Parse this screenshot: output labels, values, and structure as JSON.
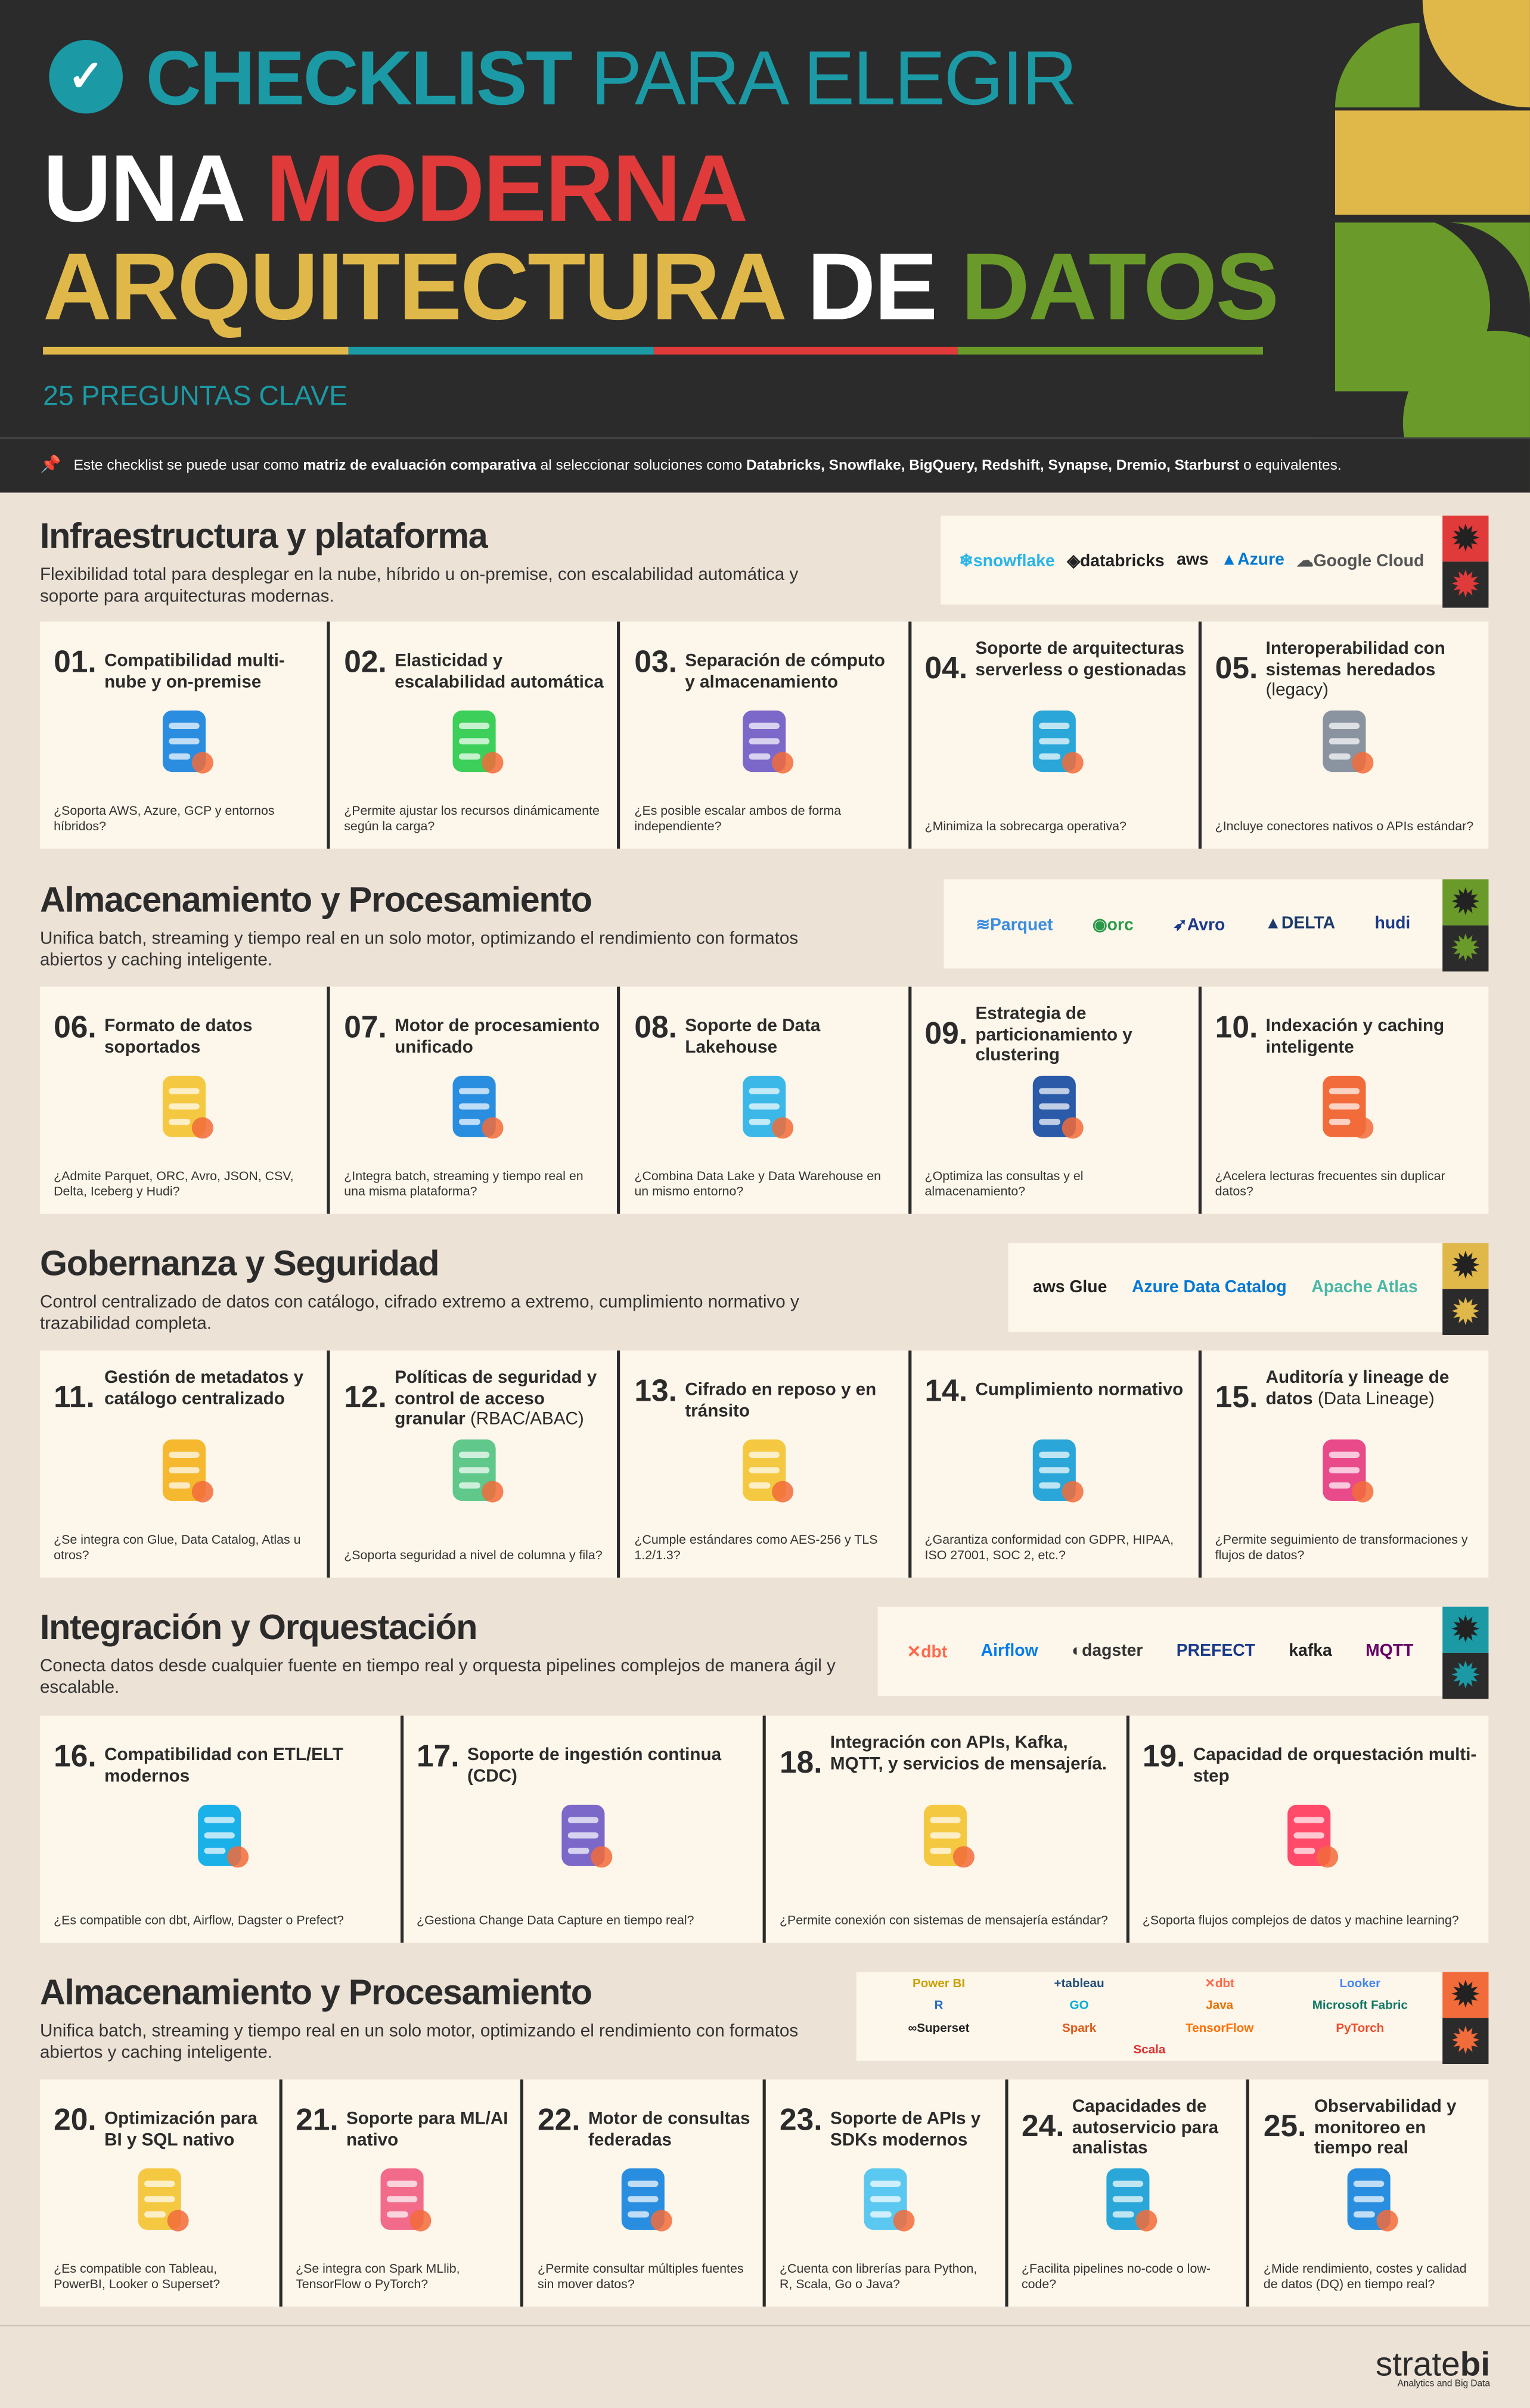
{
  "header": {
    "t1_bold": "CHECKLIST",
    "t1_thin": " PARA ELEGIR",
    "t2_a": "UNA ",
    "t2_b": "MODERNA",
    "t3_a": "ARQUITECTURA ",
    "t3_b": "DE ",
    "t3_c": "DATOS",
    "subtitle": "25 PREGUNTAS CLAVE",
    "colors": {
      "teal": "#1b9aa5",
      "red": "#e03a3a",
      "yellow": "#e0b84a",
      "green": "#6a9a2a",
      "dark": "#2b2b2b"
    }
  },
  "note": {
    "a": "Este checklist se puede usar como ",
    "b": "matriz de evaluación comparativa",
    "c": " al seleccionar soluciones como ",
    "d": "Databricks, Snowflake, BigQuery, Redshift, Synapse, Dremio, Starburst",
    "e": " o equivalentes."
  },
  "sections": [
    {
      "title": "Infraestructura y plataforma",
      "desc": "Flexibilidad total para desplegar en la nube, híbrido u on-premise, con escalabilidad automática y soporte para arquitecturas modernas.",
      "badge_color": "#e03a3a",
      "logos": [
        {
          "text": "❄snowflake",
          "color": "#29b5e8"
        },
        {
          "text": "◈databricks",
          "color": "#222"
        },
        {
          "text": "aws",
          "color": "#222"
        },
        {
          "text": "▲Azure",
          "color": "#0078d4"
        },
        {
          "text": "☁Google Cloud",
          "color": "#555"
        }
      ],
      "cards": [
        {
          "num": "01.",
          "title": "Compatibilidad multi-nube y on-premise",
          "extra": "",
          "q": "¿Soporta AWS, Azure, GCP y entornos híbridos?",
          "icon": "database-icon",
          "color": "#2b8de0"
        },
        {
          "num": "02.",
          "title": "Elasticidad y escalabilidad automática",
          "extra": "",
          "q": "¿Permite ajustar los recursos dinámicamente según la carga?",
          "icon": "resize-icon",
          "color": "#3ccf5a"
        },
        {
          "num": "03.",
          "title": "Separación de cómputo y almacenamiento",
          "extra": "",
          "q": "¿Es posible escalar ambos de forma independiente?",
          "icon": "server-stack-icon",
          "color": "#7b68c8"
        },
        {
          "num": "04.",
          "title": "Soporte de arquitecturas serverless o gestionadas",
          "extra": "",
          "q": "¿Minimiza la sobrecarga operativa?",
          "icon": "gear-flow-icon",
          "color": "#2aa7d8"
        },
        {
          "num": "05.",
          "title": "Interoperabilidad con sistemas heredados",
          "extra": "(legacy)",
          "q": "¿Incluye conectores nativos o APIs estándar?",
          "icon": "sync-gear-icon",
          "color": "#8a94a0"
        }
      ]
    },
    {
      "title": "Almacenamiento y Procesamiento",
      "desc": "Unifica batch, streaming y tiempo real en un solo motor, optimizando el rendimiento con formatos abiertos y caching inteligente.",
      "badge_color": "#6a9a2a",
      "logos": [
        {
          "text": "≋Parquet",
          "color": "#3a8de0"
        },
        {
          "text": "◉orc",
          "color": "#2a9a4a"
        },
        {
          "text": "➶Avro",
          "color": "#1a3a8a"
        },
        {
          "text": "▲DELTA",
          "color": "#1a3a6a"
        },
        {
          "text": "hudi",
          "color": "#1a3a8a"
        }
      ],
      "cards": [
        {
          "num": "06.",
          "title": "Formato de datos soportados",
          "extra": "",
          "q": "¿Admite Parquet, ORC, Avro, JSON, CSV, Delta, Iceberg y Hudi?",
          "icon": "documents-icon",
          "color": "#f5c842"
        },
        {
          "num": "07.",
          "title": "Motor de procesamiento unificado",
          "extra": "",
          "q": "¿Integra batch, streaming y tiempo real en una misma plataforma?",
          "icon": "gear-boxes-icon",
          "color": "#2a8ee0"
        },
        {
          "num": "08.",
          "title": "Soporte de Data Lakehouse",
          "extra": "",
          "q": "¿Combina Data Lake y Data Warehouse en un mismo entorno?",
          "icon": "lakehouse-icon",
          "color": "#3bb8e8"
        },
        {
          "num": "09.",
          "title": "Estrategia de particionamiento y clustering",
          "extra": "",
          "q": "¿Optimiza las consultas y el almacenamiento?",
          "icon": "cluster-chart-icon",
          "color": "#2a5aa8"
        },
        {
          "num": "10.",
          "title": "Indexación y caching inteligente",
          "extra": "",
          "q": "¿Acelera lecturas frecuentes sin duplicar datos?",
          "icon": "cache-icon",
          "color": "#f26b3a"
        }
      ]
    },
    {
      "title": "Gobernanza y Seguridad",
      "desc": "Control centralizado de datos con catálogo, cifrado extremo a extremo, cumplimiento normativo y trazabilidad completa.",
      "badge_color": "#e0b84a",
      "logos": [
        {
          "text": "aws Glue",
          "color": "#222"
        },
        {
          "text": "Azure Data Catalog",
          "color": "#0078d4"
        },
        {
          "text": "Apache Atlas",
          "color": "#4ab8a8"
        }
      ],
      "cards": [
        {
          "num": "11.",
          "title": "Gestión de metadatos y catálogo centralizado",
          "extra": "",
          "q": "¿Se integra con Glue, Data Catalog, Atlas u otros?",
          "icon": "catalog-book-icon",
          "color": "#f5b82e"
        },
        {
          "num": "12.",
          "title": "Políticas de seguridad y control de acceso granular",
          "extra": "(RBAC/ABAC)",
          "q": "¿Soporta seguridad a nivel de columna y fila?",
          "icon": "shield-icon",
          "color": "#5fc88a"
        },
        {
          "num": "13.",
          "title": "Cifrado en reposo y en tránsito",
          "extra": "",
          "q": "¿Cumple estándares como AES-256 y TLS 1.2/1.3?",
          "icon": "encrypted-folder-icon",
          "color": "#f5c842"
        },
        {
          "num": "14.",
          "title": "Cumplimiento normativo",
          "extra": "",
          "q": "¿Garantiza conformidad con GDPR, HIPAA, ISO 27001, SOC 2, etc.?",
          "icon": "compliance-icon",
          "color": "#2aa7d8"
        },
        {
          "num": "15.",
          "title": "Auditoría y lineage de datos",
          "extra": "(Data Lineage)",
          "q": "¿Permite seguimiento de transformaciones y flujos de datos?",
          "icon": "audit-icon",
          "color": "#e84a8a"
        }
      ]
    },
    {
      "title": "Integración y Orquestación",
      "desc": "Conecta datos desde cualquier fuente en tiempo real y orquesta pipelines complejos de manera ágil y escalable.",
      "badge_color": "#1b9aa5",
      "logos": [
        {
          "text": "✕dbt",
          "color": "#ff694b"
        },
        {
          "text": "Airflow",
          "color": "#017cee"
        },
        {
          "text": "◐dagster",
          "color": "#333"
        },
        {
          "text": "PREFECT",
          "color": "#1a3a8a"
        },
        {
          "text": "kafka",
          "color": "#222"
        },
        {
          "text": "MQTT",
          "color": "#660066"
        }
      ],
      "cards": [
        {
          "num": "16.",
          "title": "Compatibilidad con ETL/ELT modernos",
          "extra": "",
          "q": "¿Es compatible con dbt, Airflow, Dagster o Prefect?",
          "icon": "etl-icon",
          "color": "#1ab0e8"
        },
        {
          "num": "17.",
          "title": "Soporte de ingestión continua (CDC)",
          "extra": "",
          "q": "¿Gestiona Change Data Capture en tiempo real?",
          "icon": "server-timer-icon",
          "color": "#7b68c8"
        },
        {
          "num": "18.",
          "title": "Integración con APIs, Kafka, MQTT, y servicios de mensajería.",
          "extra": "",
          "q": "¿Permite conexión con sistemas de mensajería estándar?",
          "icon": "api-icon",
          "color": "#f5c842"
        },
        {
          "num": "19.",
          "title": "Capacidad de orquestación multi-step",
          "extra": "",
          "q": "¿Soporta flujos complejos de datos y machine learning?",
          "icon": "workflow-arrows-icon",
          "color": "#ff4a6a"
        }
      ]
    },
    {
      "title": "Almacenamiento y Procesamiento",
      "desc": "Unifica batch, streaming y tiempo real en un solo motor, optimizando el rendimiento con formatos abiertos y caching inteligente.",
      "badge_color": "#f26b3a",
      "logos": [
        {
          "text": "Power BI",
          "color": "#c9a000"
        },
        {
          "text": "+tableau",
          "color": "#1f4e79"
        },
        {
          "text": "✕dbt",
          "color": "#ff694b"
        },
        {
          "text": "Looker",
          "color": "#4285f4"
        },
        {
          "text": "R",
          "color": "#276dc3"
        },
        {
          "text": "GO",
          "color": "#00add8"
        },
        {
          "text": "Java",
          "color": "#e76f00"
        },
        {
          "text": "Microsoft Fabric",
          "color": "#117865"
        },
        {
          "text": "∞Superset",
          "color": "#222"
        },
        {
          "text": "Spark",
          "color": "#e25a1c"
        },
        {
          "text": "TensorFlow",
          "color": "#ff6f00"
        },
        {
          "text": "PyTorch",
          "color": "#ee4c2c"
        },
        {
          "text": "Scala",
          "color": "#dc322f"
        }
      ],
      "cards": [
        {
          "num": "20.",
          "title": "Optimización para BI y SQL nativo",
          "extra": "",
          "q": "¿Es compatible con Tableau, PowerBI, Looker o Superset?",
          "icon": "bi-dashboard-icon",
          "color": "#f5c842"
        },
        {
          "num": "21.",
          "title": "Soporte para ML/AI nativo",
          "extra": "",
          "q": "¿Se integra con Spark MLlib, TensorFlow o PyTorch?",
          "icon": "brain-icon",
          "color": "#f26b8a"
        },
        {
          "num": "22.",
          "title": "Motor de consultas federadas",
          "extra": "",
          "q": "¿Permite consultar múltiples fuentes sin mover datos?",
          "icon": "search-database-icon",
          "color": "#2a8ee0"
        },
        {
          "num": "23.",
          "title": "Soporte de APIs y SDKs modernos",
          "extra": "",
          "q": "¿Cuenta con librerías para Python, R, Scala, Go o Java?",
          "icon": "sdk-file-icon",
          "color": "#5ac8f0"
        },
        {
          "num": "24.",
          "title": "Capacidades de autoservicio para analistas",
          "extra": "",
          "q": "¿Facilita pipelines no-code o low-code?",
          "icon": "code-window-icon",
          "color": "#2aa7d8"
        },
        {
          "num": "25.",
          "title": "Observabilidad y monitoreo en tiempo real",
          "extra": "",
          "q": "¿Mide rendimiento, costes y calidad de datos (DQ) en tiempo real?",
          "icon": "monitor-cube-icon",
          "color": "#2a8ee0"
        }
      ]
    }
  ],
  "footer": {
    "brand_a": "strate",
    "brand_b": "bi",
    "tagline": "Analytics and Big Data"
  }
}
